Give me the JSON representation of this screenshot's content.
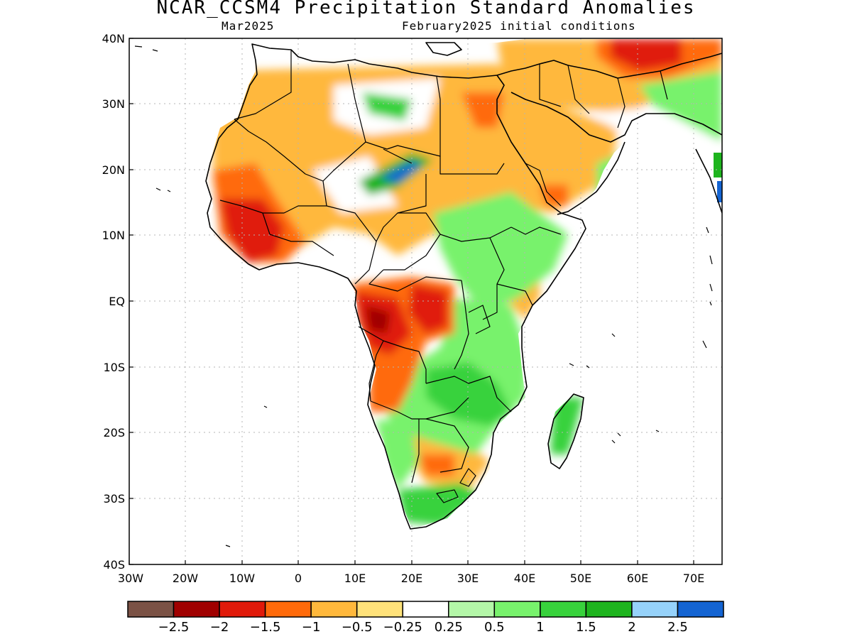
{
  "title": "NCAR_CCSM4 Precipitation Standard Anomalies",
  "subtitle_left": "Mar2025",
  "subtitle_right": "February2025 initial conditions",
  "lat_ticks": [
    "40N",
    "30N",
    "20N",
    "10N",
    "EQ",
    "10S",
    "20S",
    "30S",
    "40S"
  ],
  "lon_ticks": [
    "30W",
    "20W",
    "10W",
    "0",
    "10E",
    "20E",
    "30E",
    "40E",
    "50E",
    "60E",
    "70E"
  ],
  "colorbar": {
    "colors": [
      "#7b5245",
      "#a00000",
      "#e01a0a",
      "#ff6a0a",
      "#ffb83c",
      "#ffe27a",
      "#ffffff",
      "#b4f7a8",
      "#78f26c",
      "#38d23c",
      "#1eb41e",
      "#96d2fa",
      "#1464d2"
    ],
    "labels": [
      "-2.5",
      "-2",
      "-1.5",
      "-1",
      "-0.5",
      "-0.25",
      "0.25",
      "0.5",
      "1",
      "1.5",
      "2",
      "2.5"
    ]
  },
  "colors": {
    "land_outline": "#000000",
    "grid": "#b4b4b4"
  }
}
